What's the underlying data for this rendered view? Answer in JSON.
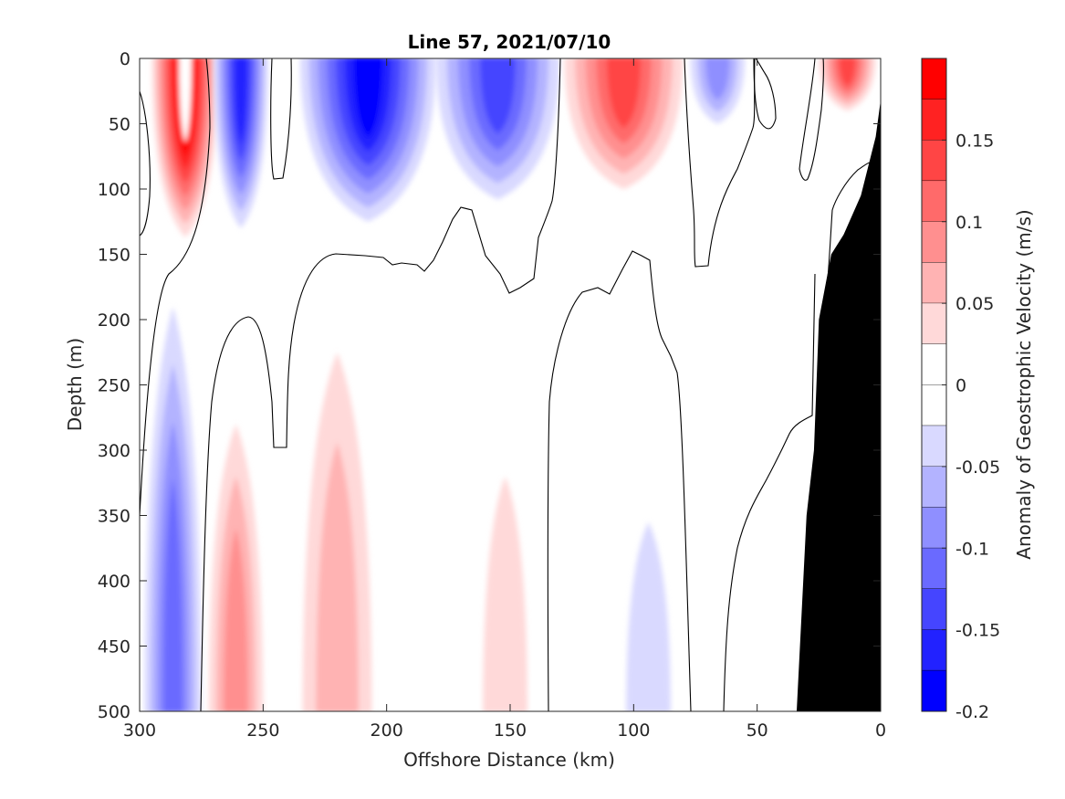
{
  "chart_data": {
    "type": "contour",
    "title": "Line 57, 2021/07/10",
    "xlabel": "Offshore Distance (km)",
    "ylabel": "Depth (m)",
    "colorbar_label": "Anomaly of Geostrophic Velocity (m/s)",
    "xlim": [
      300,
      0
    ],
    "ylim": [
      0,
      500
    ],
    "x_reversed": true,
    "y_reversed": true,
    "x_ticks": [
      "300",
      "250",
      "200",
      "150",
      "100",
      "50",
      "0"
    ],
    "x_tick_values": [
      300,
      250,
      200,
      150,
      100,
      50,
      0
    ],
    "y_ticks": [
      "0",
      "50",
      "100",
      "150",
      "200",
      "250",
      "300",
      "350",
      "400",
      "450",
      "500"
    ],
    "y_tick_values": [
      0,
      50,
      100,
      150,
      200,
      250,
      300,
      350,
      400,
      450,
      500
    ],
    "colorbar": {
      "range": [
        -0.2,
        0.2
      ],
      "tick_labels": [
        "0.15",
        "0.1",
        "0.05",
        "0",
        "-0.05",
        "-0.1",
        "-0.15",
        "-0.2"
      ],
      "tick_values": [
        0.15,
        0.1,
        0.05,
        0,
        -0.05,
        -0.1,
        -0.15,
        -0.2
      ],
      "levels": [
        {
          "from": 0.175,
          "to": 0.2,
          "color": "#ff0000"
        },
        {
          "from": 0.15,
          "to": 0.175,
          "color": "#ff2222"
        },
        {
          "from": 0.125,
          "to": 0.15,
          "color": "#ff4545"
        },
        {
          "from": 0.1,
          "to": 0.125,
          "color": "#ff6a6a"
        },
        {
          "from": 0.075,
          "to": 0.1,
          "color": "#ff8f8f"
        },
        {
          "from": 0.05,
          "to": 0.075,
          "color": "#ffb3b3"
        },
        {
          "from": 0.025,
          "to": 0.05,
          "color": "#ffd9d9"
        },
        {
          "from": 0.0,
          "to": 0.025,
          "color": "#ffffff"
        },
        {
          "from": -0.025,
          "to": 0.0,
          "color": "#ffffff"
        },
        {
          "from": -0.05,
          "to": -0.025,
          "color": "#d9d9ff"
        },
        {
          "from": -0.075,
          "to": -0.05,
          "color": "#b3b3ff"
        },
        {
          "from": -0.1,
          "to": -0.075,
          "color": "#8f8fff"
        },
        {
          "from": -0.125,
          "to": -0.1,
          "color": "#6a6aff"
        },
        {
          "from": -0.15,
          "to": -0.125,
          "color": "#4545ff"
        },
        {
          "from": -0.175,
          "to": -0.15,
          "color": "#2222ff"
        },
        {
          "from": -0.2,
          "to": -0.175,
          "color": "#0000ff"
        }
      ]
    },
    "features": [
      {
        "name": "red-core-290km",
        "value": 0.2,
        "x_range": [
          295,
          268
        ],
        "depth_range": [
          0,
          137
        ]
      },
      {
        "name": "blue-core-260km",
        "value": -0.15,
        "x_range": [
          270,
          248
        ],
        "depth_range": [
          0,
          130
        ]
      },
      {
        "name": "blue-core-220km",
        "value": -0.175,
        "x_range": [
          235,
          180
        ],
        "depth_range": [
          0,
          125
        ]
      },
      {
        "name": "blue-core-155km",
        "value": -0.125,
        "x_range": [
          180,
          130
        ],
        "depth_range": [
          0,
          108
        ]
      },
      {
        "name": "red-core-100km",
        "value": 0.125,
        "x_range": [
          128,
          80
        ],
        "depth_range": [
          0,
          100
        ]
      },
      {
        "name": "blue-core-65km",
        "value": -0.075,
        "x_range": [
          77,
          55
        ],
        "depth_range": [
          0,
          50
        ]
      },
      {
        "name": "red-core-0km",
        "value": 0.125,
        "x_range": [
          25,
          2
        ],
        "depth_range": [
          0,
          40
        ]
      },
      {
        "name": "blue-deep-285km",
        "value": -0.1,
        "x_range": [
          298,
          275
        ],
        "depth_range": [
          190,
          500
        ]
      },
      {
        "name": "red-deep-260km",
        "value": 0.075,
        "x_range": [
          272,
          250
        ],
        "depth_range": [
          280,
          500
        ]
      },
      {
        "name": "red-deep-215km",
        "value": 0.05,
        "x_range": [
          234,
          206
        ],
        "depth_range": [
          225,
          500
        ]
      },
      {
        "name": "red-deep-152km",
        "value": 0.025,
        "x_range": [
          161,
          143
        ],
        "depth_range": [
          320,
          500
        ]
      },
      {
        "name": "blue-deep-95km",
        "value": -0.025,
        "x_range": [
          103,
          85
        ],
        "depth_range": [
          355,
          500
        ]
      }
    ],
    "bathymetry": {
      "color": "#000000",
      "points": [
        [
          34,
          500
        ],
        [
          30,
          350
        ],
        [
          27,
          300
        ],
        [
          25,
          200
        ],
        [
          20,
          150
        ],
        [
          15,
          135
        ],
        [
          8,
          105
        ],
        [
          2,
          60
        ],
        [
          0,
          32
        ],
        [
          0,
          500
        ]
      ]
    }
  }
}
